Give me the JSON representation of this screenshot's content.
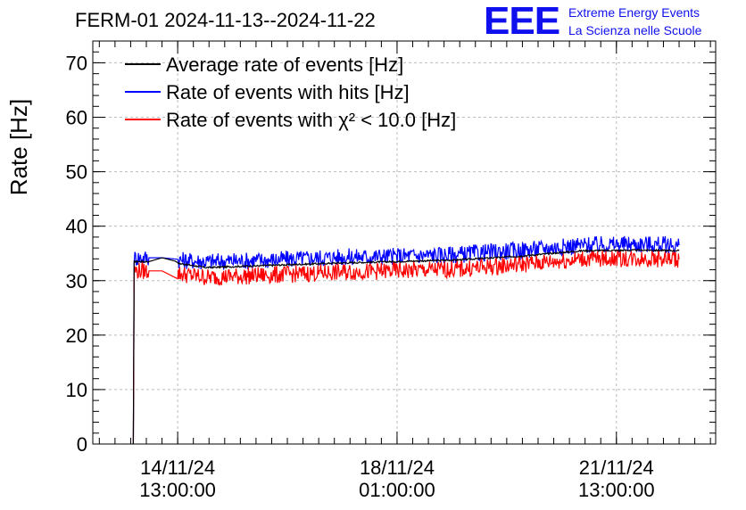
{
  "header": {
    "title": "FERM-01 2024-11-13--2024-11-22",
    "logo": "EEE",
    "logo_line1": "Extreme Energy Events",
    "logo_line2": "La Scienza nelle Scuole"
  },
  "chart_data": {
    "type": "line",
    "title": "FERM-01 2024-11-13--2024-11-22",
    "ylabel": "Rate [Hz]",
    "xlabel": "",
    "ylim": [
      0,
      74
    ],
    "yticks": [
      0,
      10,
      20,
      30,
      40,
      50,
      60,
      70
    ],
    "xlim": [
      "2024-11-13 04:30",
      "2024-11-23 03:00"
    ],
    "xticks": [
      {
        "at": "2024-11-14 13:00:00",
        "date": "14/11/24",
        "time": "13:00:00"
      },
      {
        "at": "2024-11-18 01:00:00",
        "date": "18/11/24",
        "time": "01:00:00"
      },
      {
        "at": "2024-11-21 13:00:00",
        "date": "21/11/24",
        "time": "13:00:00"
      }
    ],
    "grid": true,
    "legend_position": "top-left",
    "series": [
      {
        "name": "Average rate of events [Hz]",
        "color": "#000000",
        "x": [
          "2024-11-13 20:00",
          "2024-11-13 20:10",
          "2024-11-13 20:20",
          "2024-11-14 02:00",
          "2024-11-14 07:00",
          "2024-11-14 12:00",
          "2024-11-14 13:00",
          "2024-11-15 00:00",
          "2024-11-16 00:00",
          "2024-11-17 00:00",
          "2024-11-18 00:00",
          "2024-11-19 00:00",
          "2024-11-20 00:00",
          "2024-11-21 00:00",
          "2024-11-22 00:00",
          "2024-11-22 13:00"
        ],
        "values": [
          0,
          17,
          33.5,
          33.5,
          34.2,
          33.6,
          33.2,
          32.4,
          32.8,
          33.2,
          33.5,
          33.8,
          34.5,
          35.5,
          35.6,
          35.5
        ]
      },
      {
        "name": "Rate of events with hits [Hz]",
        "color": "#0000ff",
        "x": [
          "2024-11-13 20:00",
          "2024-11-13 20:10",
          "2024-11-13 20:20",
          "2024-11-14 02:00",
          "2024-11-14 07:00",
          "2024-11-14 13:00",
          "2024-11-15 00:00",
          "2024-11-16 00:00",
          "2024-11-17 00:00",
          "2024-11-18 00:00",
          "2024-11-19 00:00",
          "2024-11-20 00:00",
          "2024-11-21 00:00",
          "2024-11-22 00:00",
          "2024-11-22 13:00"
        ],
        "values": [
          0,
          17,
          34.2,
          34.2,
          34.2,
          33.8,
          33.5,
          33.8,
          34.3,
          34.5,
          34.8,
          35.6,
          36.5,
          36.7,
          36.5
        ]
      },
      {
        "name": "Rate of events with χ² < 10.0 [Hz]",
        "color": "#ff0000",
        "x": [
          "2024-11-13 20:00",
          "2024-11-13 20:10",
          "2024-11-13 20:20",
          "2024-11-14 02:00",
          "2024-11-14 07:00",
          "2024-11-14 13:00",
          "2024-11-15 00:00",
          "2024-11-16 00:00",
          "2024-11-17 00:00",
          "2024-11-18 00:00",
          "2024-11-19 00:00",
          "2024-11-20 00:00",
          "2024-11-21 00:00",
          "2024-11-22 00:00",
          "2024-11-22 13:00"
        ],
        "values": [
          0,
          16,
          31.8,
          31.8,
          31.8,
          31.3,
          30.6,
          31.0,
          31.5,
          31.8,
          32.1,
          33.0,
          34.0,
          34.1,
          33.9
        ]
      }
    ]
  }
}
